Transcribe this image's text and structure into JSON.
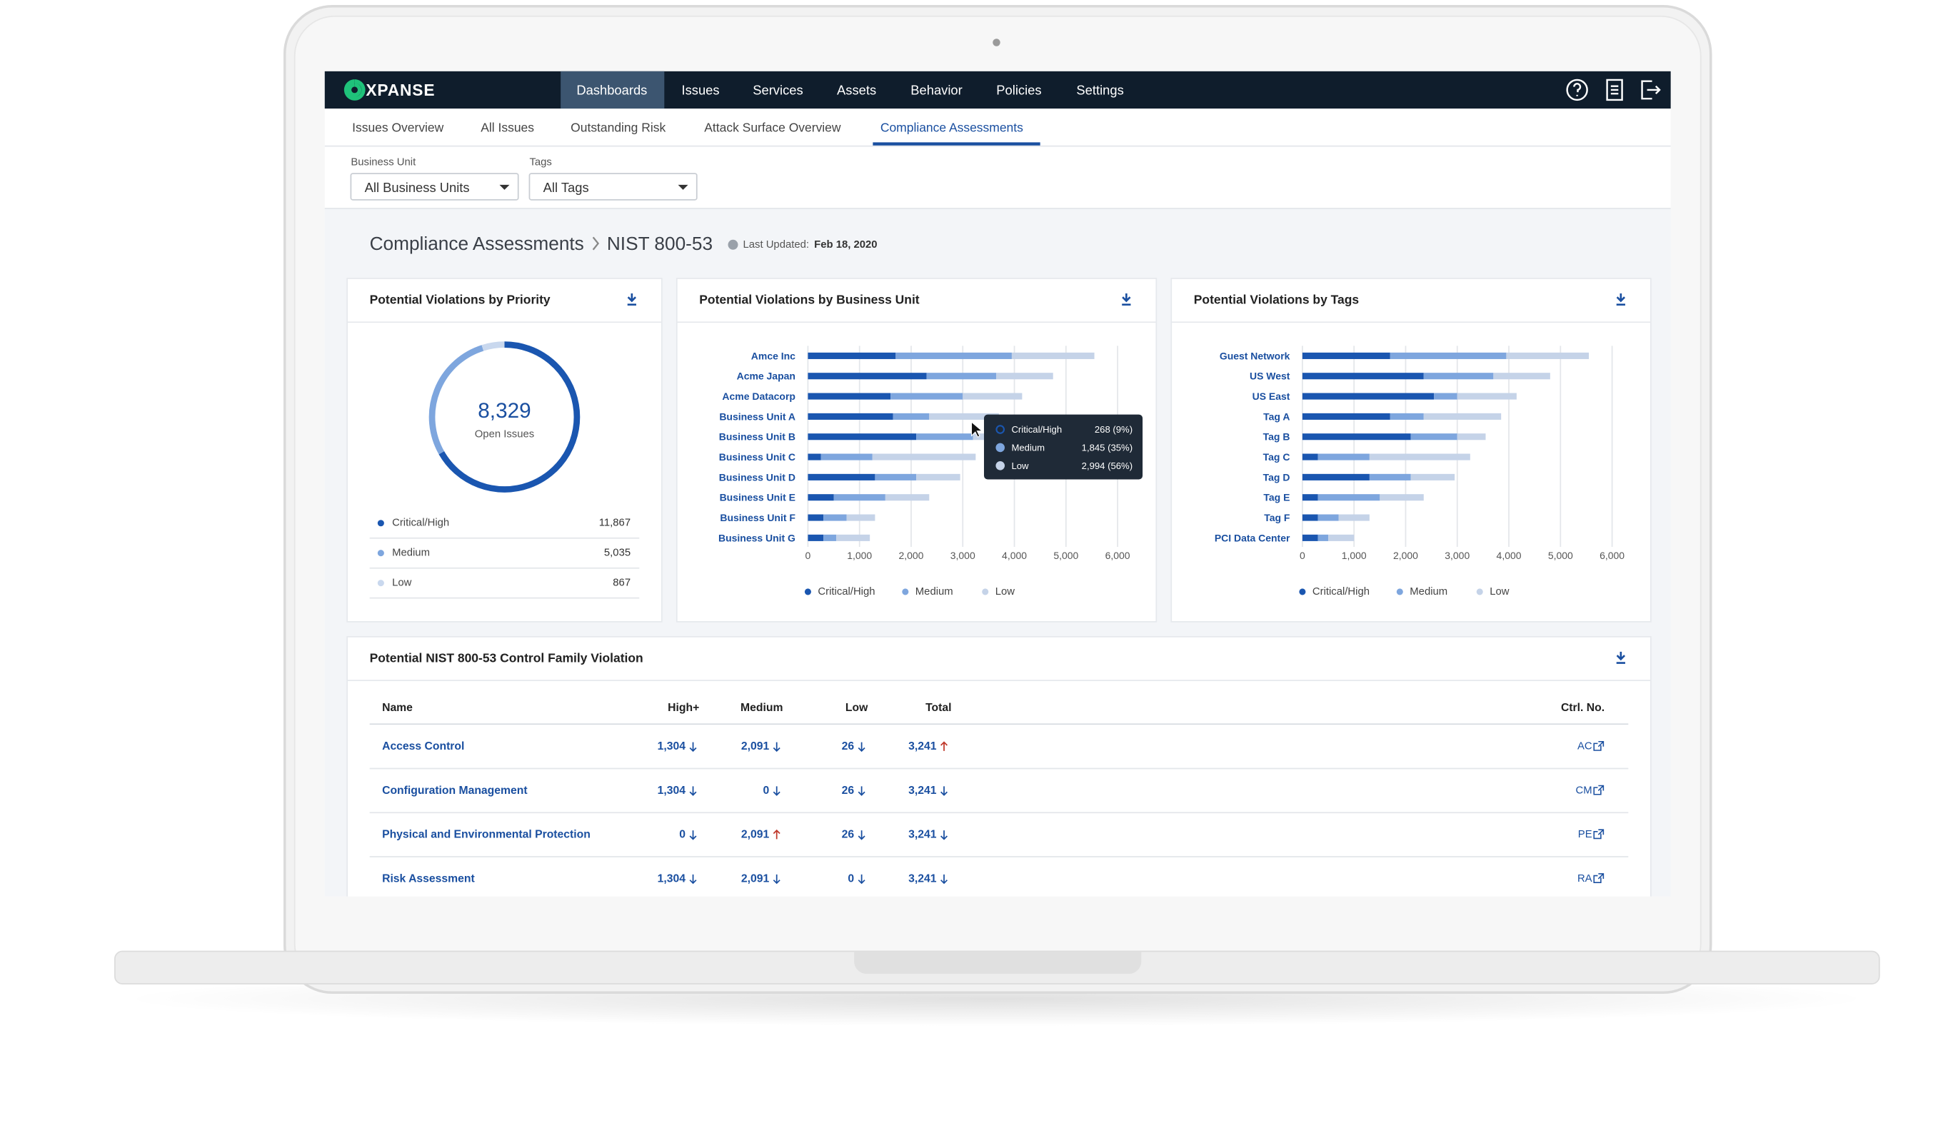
{
  "nav": {
    "logo": "XPANSE",
    "menu": [
      "Dashboards",
      "Issues",
      "Services",
      "Assets",
      "Behavior",
      "Policies",
      "Settings"
    ],
    "active": 0
  },
  "tabs": {
    "items": [
      "Issues Overview",
      "All Issues",
      "Outstanding Risk",
      "Attack Surface Overview",
      "Compliance Assessments"
    ],
    "active": 4
  },
  "filters": [
    {
      "label": "Business Unit",
      "value": "All Business Units"
    },
    {
      "label": "Tags",
      "value": "All Tags"
    }
  ],
  "breadcrumb": {
    "section": "Compliance Assessments",
    "page": "NIST 800-53",
    "updated_label": "Last Updated:",
    "updated": "Feb 18, 2020"
  },
  "chart_data": [
    {
      "type": "donut",
      "title": "Potential Violations by Priority",
      "total": {
        "value": 8329,
        "label": "8,329"
      },
      "total_caption": "Open Issues",
      "categories": [
        "Critical/High",
        "Medium",
        "Low"
      ],
      "values": [
        11867,
        5035,
        867
      ],
      "value_labels": [
        "11,867",
        "5,035",
        "867"
      ],
      "colors": [
        "#1a56b0",
        "#7ea6de",
        "#c9d8ee"
      ]
    },
    {
      "type": "hbar",
      "title": "Potential Violations by Business Unit",
      "categories": [
        "Amce Inc",
        "Acme Japan",
        "Acme Datacorp",
        "Business Unit A",
        "Business Unit B",
        "Business Unit C",
        "Business Unit D",
        "Business Unit E",
        "Business Unit F",
        "Business Unit G"
      ],
      "series": [
        {
          "name": "Critical/High",
          "color": "#1a56b0",
          "values": [
            1700,
            2300,
            1600,
            1650,
            2100,
            250,
            1300,
            500,
            300,
            300
          ]
        },
        {
          "name": "Medium",
          "color": "#7ea6de",
          "values": [
            2250,
            1350,
            1400,
            700,
            1100,
            1000,
            800,
            1000,
            450,
            250
          ]
        },
        {
          "name": "Low",
          "color": "#c5d3e8",
          "values": [
            1600,
            1100,
            1150,
            1350,
            300,
            2000,
            850,
            850,
            550,
            650
          ]
        }
      ],
      "xlim": [
        0,
        6000
      ],
      "xticks": [
        0,
        {
          "value": 1000,
          "label": "1,000"
        },
        {
          "value": 2000,
          "label": "2,000"
        },
        {
          "value": 3000,
          "label": "3,000"
        },
        {
          "value": 4000,
          "label": "4,000"
        },
        {
          "value": 5000,
          "label": "5,000"
        },
        {
          "value": 6000,
          "label": "6,000"
        }
      ],
      "grid": true,
      "tooltip": {
        "rows": [
          {
            "label": "Critical/High",
            "value": "268 (9%)"
          },
          {
            "label": "Medium",
            "value": "1,845 (35%)"
          },
          {
            "label": "Low",
            "value": "2,994 (56%)"
          }
        ]
      }
    },
    {
      "type": "hbar",
      "title": "Potential Violations by Tags",
      "categories": [
        "Guest Network",
        "US West",
        "US East",
        "Tag A",
        "Tag B",
        "Tag C",
        "Tag D",
        "Tag E",
        "Tag F",
        "PCI Data Center"
      ],
      "series": [
        {
          "name": "Critical/High",
          "color": "#1a56b0",
          "values": [
            1700,
            2350,
            2550,
            1700,
            2100,
            300,
            1300,
            300,
            300,
            300
          ]
        },
        {
          "name": "Medium",
          "color": "#7ea6de",
          "values": [
            2250,
            1350,
            450,
            650,
            900,
            1000,
            800,
            1200,
            400,
            200
          ]
        },
        {
          "name": "Low",
          "color": "#c5d3e8",
          "values": [
            1600,
            1100,
            1150,
            1500,
            550,
            1950,
            850,
            850,
            600,
            500
          ]
        }
      ],
      "xlim": [
        0,
        6000
      ],
      "xticks": [
        0,
        {
          "value": 1000,
          "label": "1,000"
        },
        {
          "value": 2000,
          "label": "2,000"
        },
        {
          "value": 3000,
          "label": "3,000"
        },
        {
          "value": 4000,
          "label": "4,000"
        },
        {
          "value": 5000,
          "label": "5,000"
        },
        {
          "value": 6000,
          "label": "6,000"
        }
      ],
      "grid": true
    }
  ],
  "table": {
    "title": "Potential NIST 800-53 Control Family Violation",
    "columns": [
      "Name",
      "High+",
      "Medium",
      "Low",
      "Total",
      "Ctrl. No."
    ],
    "rows": [
      {
        "name": "Access Control",
        "cells": [
          {
            "text": "1,304",
            "trend": "down"
          },
          {
            "text": "2,091",
            "trend": "down"
          },
          {
            "text": "26",
            "trend": "down"
          },
          {
            "text": "3,241",
            "trend": "up"
          }
        ],
        "ctrl": "AC"
      },
      {
        "name": "Configuration Management",
        "cells": [
          {
            "text": "1,304",
            "trend": "down"
          },
          {
            "text": "0",
            "trend": "down"
          },
          {
            "text": "26",
            "trend": "down"
          },
          {
            "text": "3,241",
            "trend": "down"
          }
        ],
        "ctrl": "CM"
      },
      {
        "name": "Physical and Environmental Protection",
        "cells": [
          {
            "text": "0",
            "trend": "down"
          },
          {
            "text": "2,091",
            "trend": "up"
          },
          {
            "text": "26",
            "trend": "down"
          },
          {
            "text": "3,241",
            "trend": "down"
          }
        ],
        "ctrl": "PE"
      },
      {
        "name": "Risk Assessment",
        "cells": [
          {
            "text": "1,304",
            "trend": "down"
          },
          {
            "text": "2,091",
            "trend": "down"
          },
          {
            "text": "0",
            "trend": "down"
          },
          {
            "text": "3,241",
            "trend": "down"
          }
        ],
        "ctrl": "RA"
      }
    ]
  }
}
